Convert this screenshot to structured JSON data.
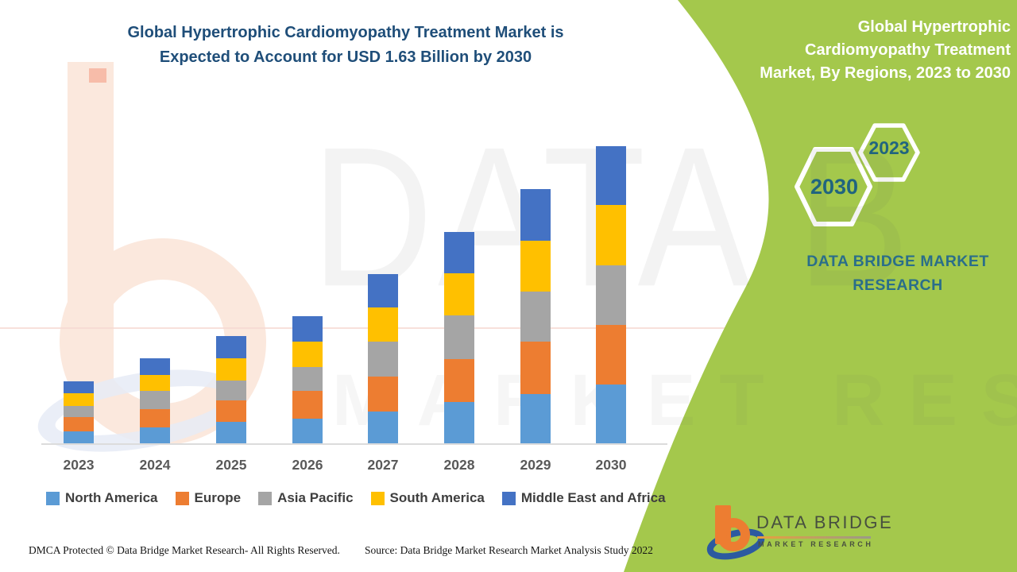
{
  "header": {
    "title_line1": "Global Hypertrophic Cardiomyopathy Treatment Market is",
    "title_line2": "Expected to Account for USD 1.63 Billion by 2030"
  },
  "panel": {
    "title_lines": [
      "Global Hypertrophic",
      "Cardiomyopathy Treatment",
      "Market, By Regions, 2023 to 2030"
    ],
    "hexagons": [
      {
        "label": "2030"
      },
      {
        "label": "2023"
      }
    ],
    "brand_line1": "DATA BRIDGE MARKET",
    "brand_line2": "RESEARCH",
    "colors": {
      "panel_green": "#a4c84c",
      "teal_text": "#2a6e8a",
      "hex_outline": "#ffffff"
    }
  },
  "chart_data": {
    "type": "bar",
    "stacked": true,
    "unit": "USD Billion",
    "title": "Global Hypertrophic Cardiomyopathy Treatment Market, By Regions, 2023 to 2030",
    "note": "2030 total = USD 1.63 Billion",
    "categories": [
      "2023",
      "2024",
      "2025",
      "2026",
      "2027",
      "2028",
      "2029",
      "2030"
    ],
    "series": [
      {
        "name": "North America",
        "color": "#5B9BD5",
        "values": [
          0.07,
          0.09,
          0.12,
          0.14,
          0.18,
          0.23,
          0.275,
          0.325
        ]
      },
      {
        "name": "Europe",
        "color": "#ED7D31",
        "values": [
          0.08,
          0.1,
          0.12,
          0.15,
          0.19,
          0.235,
          0.285,
          0.326
        ]
      },
      {
        "name": "Asia Pacific",
        "color": "#A5A5A5",
        "values": [
          0.06,
          0.1,
          0.11,
          0.13,
          0.19,
          0.24,
          0.275,
          0.328
        ]
      },
      {
        "name": "South America",
        "color": "#FFC000",
        "values": [
          0.07,
          0.09,
          0.12,
          0.14,
          0.19,
          0.23,
          0.28,
          0.328
        ]
      },
      {
        "name": "Middle East and Africa",
        "color": "#4472C4",
        "values": [
          0.065,
          0.09,
          0.12,
          0.14,
          0.18,
          0.225,
          0.28,
          0.323
        ]
      }
    ],
    "totals": [
      0.345,
      0.47,
      0.59,
      0.7,
      0.93,
      1.16,
      1.395,
      1.63
    ],
    "ylim": [
      0,
      1.7
    ],
    "gridlines": false,
    "legend_position": "bottom",
    "xlabel": "",
    "ylabel": ""
  },
  "watermarks": {
    "big_text": "DATA B",
    "row_text": "MARKET RESEARCH"
  },
  "logo": {
    "name": "DATA BRIDGE",
    "sub": "MARKET RESEARCH"
  },
  "footer": {
    "dmca": "DMCA Protected © Data Bridge Market Research- All Rights Reserved.",
    "source": "Source: Data Bridge Market Research Market Analysis Study 2022"
  }
}
